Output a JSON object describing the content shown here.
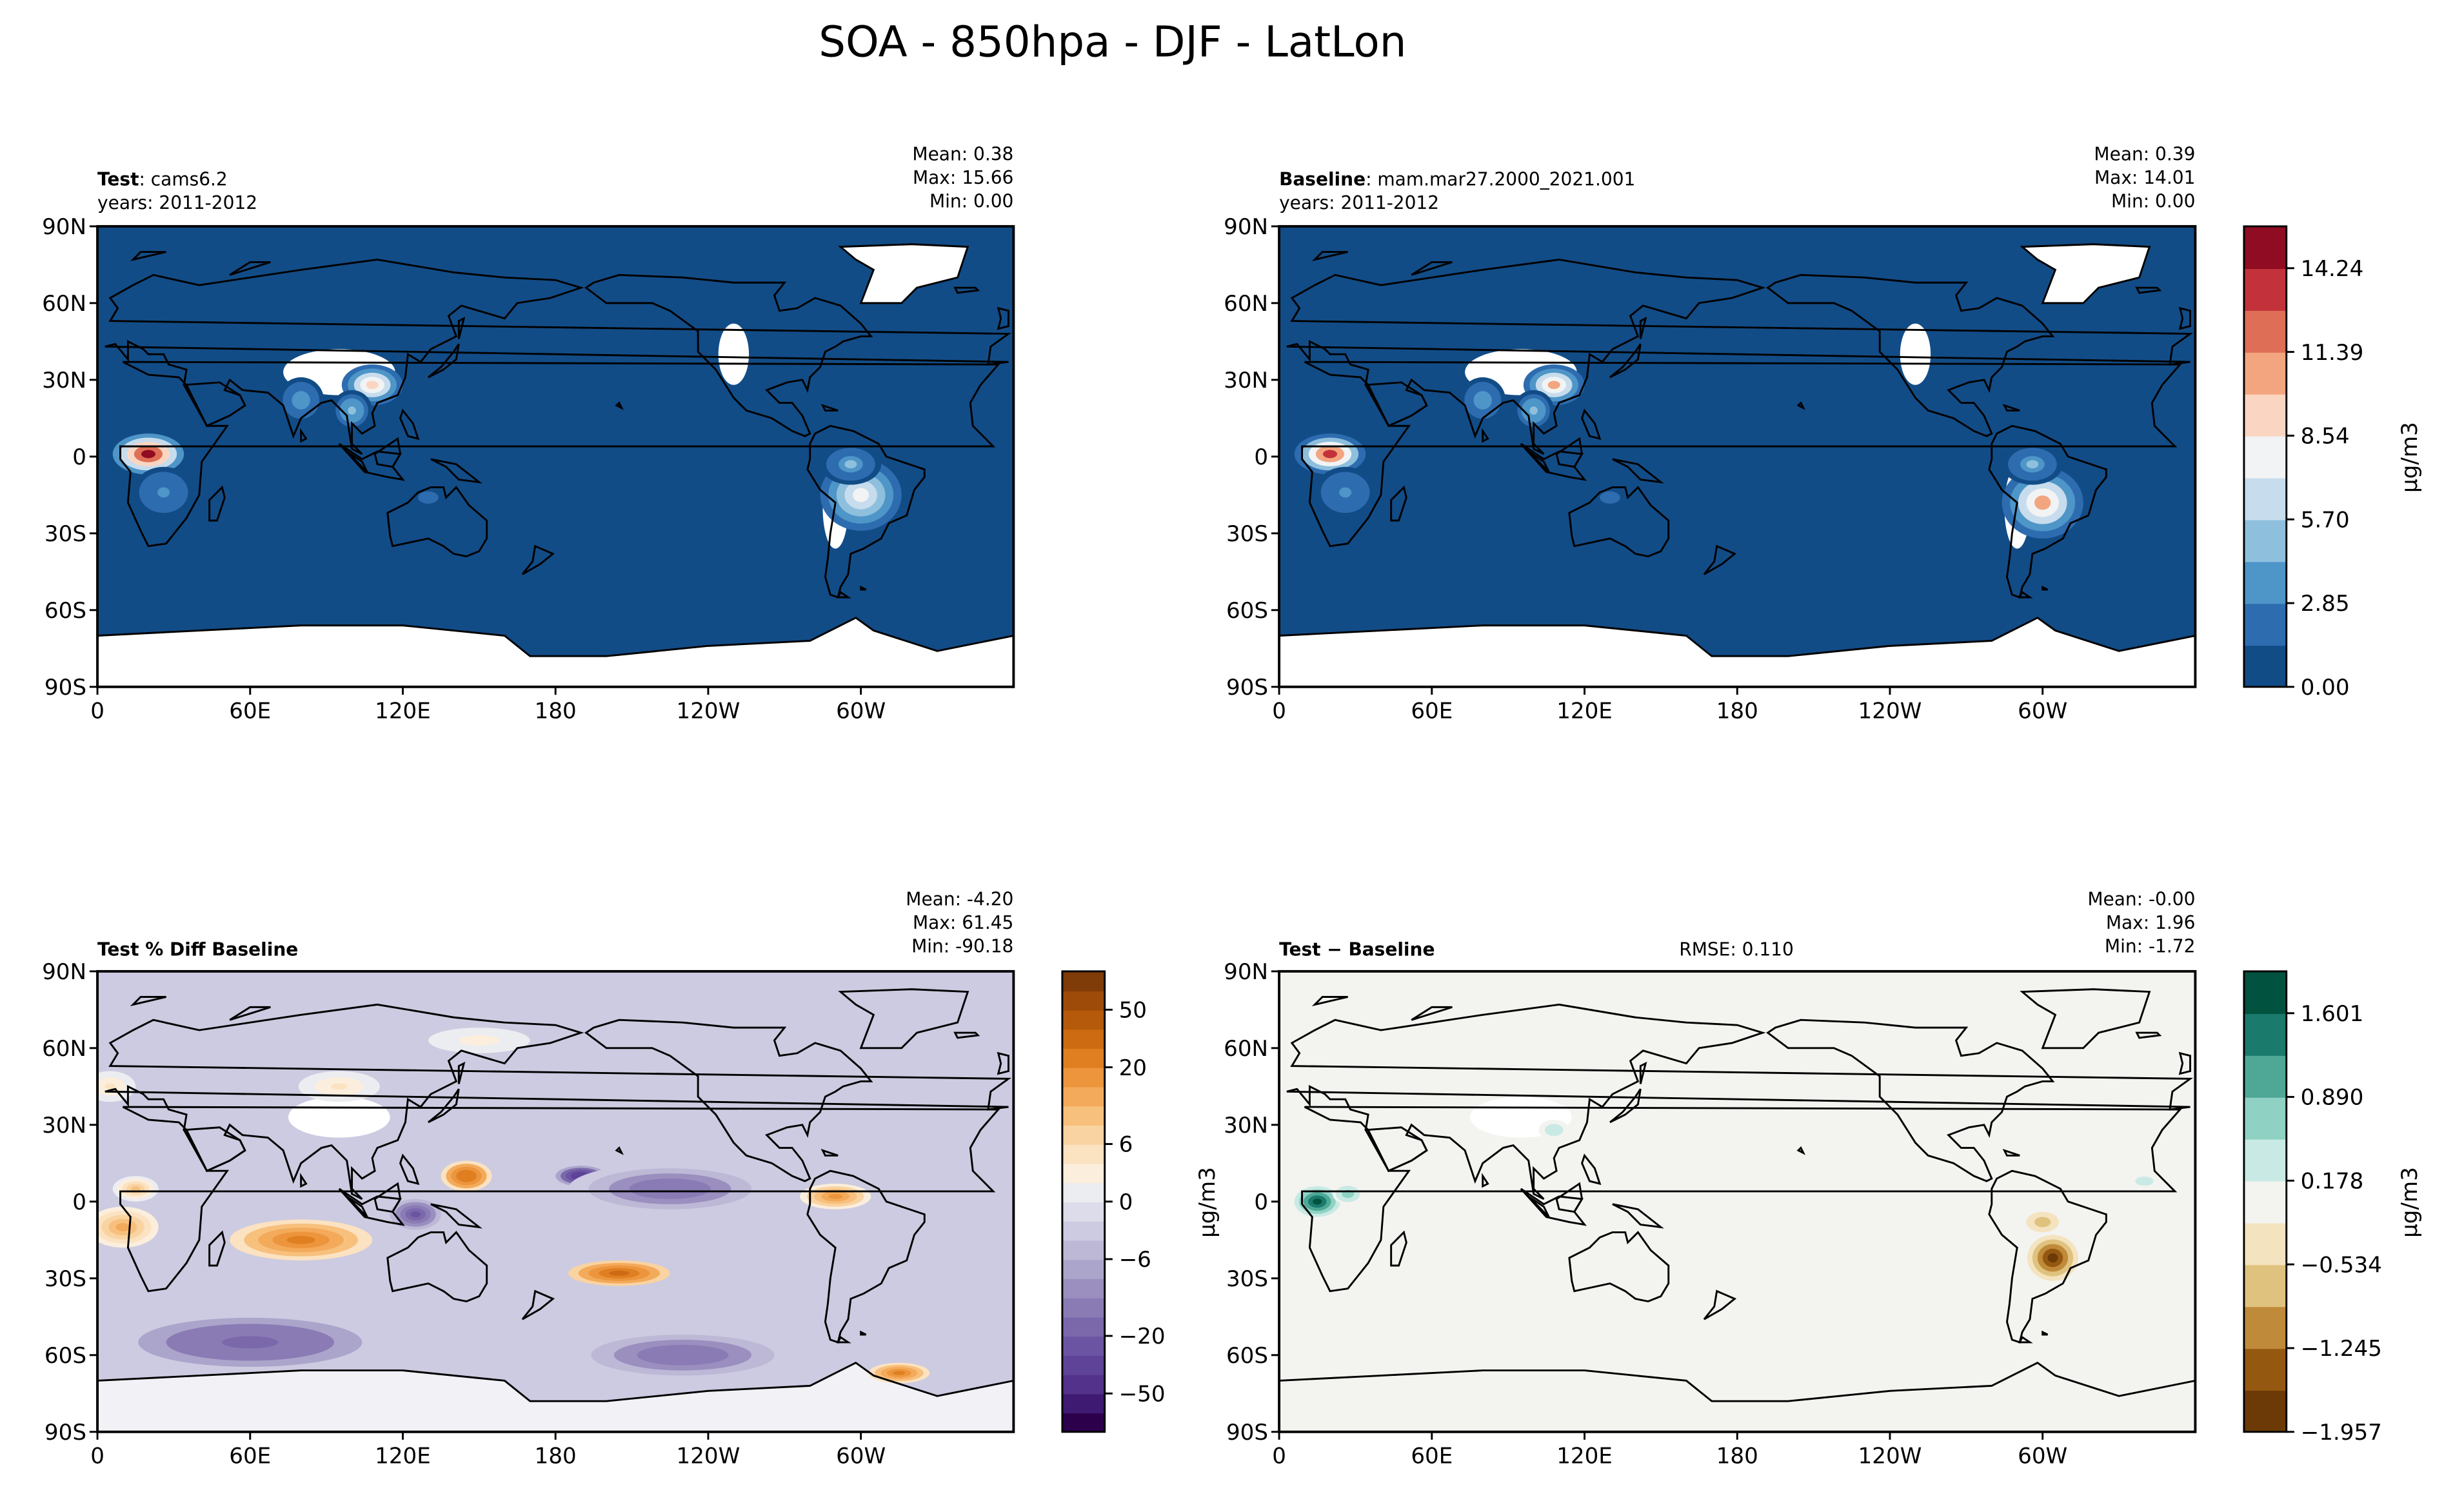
{
  "figure": {
    "title": "SOA - 850hpa - DJF - LatLon"
  },
  "chart_data": [
    {
      "type": "heatmap",
      "panel": "test",
      "title_bold": "Test",
      "title_rest": ": cams6.2",
      "years": "years: 2011-2012",
      "stats": {
        "mean": "Mean:  0.38",
        "max": "Max: 15.66",
        "min": "Min:  0.00"
      },
      "x_ticks": [
        "0",
        "60E",
        "120E",
        "180",
        "120W",
        "60W"
      ],
      "y_ticks": [
        "90N",
        "60N",
        "30N",
        "0",
        "30S",
        "60S",
        "90S"
      ],
      "xlim": [
        0,
        360
      ],
      "ylim": [
        -90,
        90
      ],
      "blobs": [
        {
          "name": "central-africa",
          "lon": 20,
          "lat": 1,
          "w": 14,
          "h": 8,
          "v": 15.0
        },
        {
          "name": "south-africa",
          "lon": 26,
          "lat": -14,
          "w": 12,
          "h": 10,
          "v": 3.5
        },
        {
          "name": "east-asia",
          "lon": 108,
          "lat": 28,
          "w": 12,
          "h": 8,
          "v": 9.5
        },
        {
          "name": "india",
          "lon": 80,
          "lat": 22,
          "w": 9,
          "h": 9,
          "v": 4.0
        },
        {
          "name": "se-asia",
          "lon": 100,
          "lat": 18,
          "w": 8,
          "h": 8,
          "v": 5.0
        },
        {
          "name": "south-america",
          "lon": 300,
          "lat": -15,
          "w": 16,
          "h": 14,
          "v": 8.5
        },
        {
          "name": "amazon",
          "lon": 296,
          "lat": -3,
          "w": 12,
          "h": 8,
          "v": 4.5
        },
        {
          "name": "north-australia",
          "lon": 130,
          "lat": -16,
          "w": 10,
          "h": 6,
          "v": 2.0
        }
      ]
    },
    {
      "type": "heatmap",
      "panel": "baseline",
      "title_bold": "Baseline",
      "title_rest": ": mam.mar27.2000_2021.001",
      "years": "years: 2011-2012",
      "stats": {
        "mean": "Mean:  0.39",
        "max": "Max: 14.01",
        "min": "Min:  0.00"
      },
      "x_ticks": [
        "0",
        "60E",
        "120E",
        "180",
        "120W",
        "60W"
      ],
      "y_ticks": [
        "90N",
        "60N",
        "30N",
        "0",
        "30S",
        "60S",
        "90S"
      ],
      "xlim": [
        0,
        360
      ],
      "ylim": [
        -90,
        90
      ],
      "blobs": [
        {
          "name": "central-africa",
          "lon": 20,
          "lat": 1,
          "w": 14,
          "h": 8,
          "v": 13.5
        },
        {
          "name": "south-africa",
          "lon": 26,
          "lat": -14,
          "w": 12,
          "h": 10,
          "v": 3.5
        },
        {
          "name": "east-asia",
          "lon": 108,
          "lat": 28,
          "w": 12,
          "h": 8,
          "v": 10.0
        },
        {
          "name": "india",
          "lon": 80,
          "lat": 22,
          "w": 9,
          "h": 9,
          "v": 4.0
        },
        {
          "name": "se-asia",
          "lon": 100,
          "lat": 18,
          "w": 8,
          "h": 8,
          "v": 5.0
        },
        {
          "name": "south-america",
          "lon": 300,
          "lat": -18,
          "w": 16,
          "h": 14,
          "v": 10.0
        },
        {
          "name": "amazon",
          "lon": 296,
          "lat": -3,
          "w": 12,
          "h": 8,
          "v": 4.5
        },
        {
          "name": "north-australia",
          "lon": 130,
          "lat": -16,
          "w": 10,
          "h": 6,
          "v": 2.0
        }
      ],
      "colorbar": {
        "label": "μg/m3",
        "ticks": [
          "0.00",
          "2.85",
          "5.70",
          "8.54",
          "11.39",
          "14.24"
        ],
        "colors": [
          "#124c87",
          "#2e6cb0",
          "#4e95c8",
          "#8ec0dd",
          "#c7dcec",
          "#f1f3f4",
          "#fad6c2",
          "#f3a57f",
          "#de6f56",
          "#c3323a",
          "#8f0c22"
        ]
      }
    },
    {
      "type": "heatmap",
      "panel": "pct-diff",
      "title_bold": "Test % Diff Baseline",
      "stats": {
        "mean": "Mean: -4.20",
        "max": "Max: 61.45",
        "min": "Min: -90.18"
      },
      "x_ticks": [
        "0",
        "60E",
        "120E",
        "180",
        "120W",
        "60W"
      ],
      "y_ticks": [
        "90N",
        "60N",
        "30N",
        "0",
        "30S",
        "60S",
        "90S"
      ],
      "xlim": [
        0,
        360
      ],
      "ylim": [
        -90,
        90
      ],
      "blobs": [
        {
          "name": "south-atlantic",
          "lon": 10,
          "lat": -10,
          "w": 14,
          "h": 8,
          "v": 12
        },
        {
          "name": "west-africa",
          "lon": 15,
          "lat": 5,
          "w": 9,
          "h": 5,
          "v": 8
        },
        {
          "name": "north-atlantic-east",
          "lon": 5,
          "lat": 45,
          "w": 10,
          "h": 6,
          "v": 4
        },
        {
          "name": "central-asia",
          "lon": 95,
          "lat": 45,
          "w": 16,
          "h": 6,
          "v": 4
        },
        {
          "name": "siberia",
          "lon": 150,
          "lat": 63,
          "w": 20,
          "h": 5,
          "v": 3
        },
        {
          "name": "indian-ocean",
          "lon": 80,
          "lat": -15,
          "w": 28,
          "h": 8,
          "v": 22
        },
        {
          "name": "west-pacific",
          "lon": 145,
          "lat": 10,
          "w": 10,
          "h": 6,
          "v": 25
        },
        {
          "name": "south-pacific",
          "lon": 205,
          "lat": -28,
          "w": 20,
          "h": 5,
          "v": 30
        },
        {
          "name": "east-pacific",
          "lon": 290,
          "lat": 2,
          "w": 14,
          "h": 5,
          "v": 15
        },
        {
          "name": "patagonia-sea",
          "lon": 315,
          "lat": -67,
          "w": 12,
          "h": 4,
          "v": 20
        },
        {
          "name": "north-pacific-min",
          "lon": 190,
          "lat": 10,
          "w": 10,
          "h": 4,
          "v": -40
        },
        {
          "name": "pacific-band",
          "lon": 225,
          "lat": 5,
          "w": 40,
          "h": 10,
          "v": -15
        },
        {
          "name": "southern-ocean",
          "lon": 60,
          "lat": -55,
          "w": 55,
          "h": 12,
          "v": -18
        },
        {
          "name": "southern-ocean-b",
          "lon": 230,
          "lat": -60,
          "w": 45,
          "h": 10,
          "v": -15
        },
        {
          "name": "maritime",
          "lon": 125,
          "lat": -5,
          "w": 10,
          "h": 6,
          "v": -25
        }
      ],
      "colorbar": {
        "ticks": [
          "−50",
          "−20",
          "−6",
          "0",
          "6",
          "20",
          "50"
        ],
        "tick_values": [
          -50,
          -20,
          -6,
          0,
          6,
          20,
          50
        ],
        "levels": [
          -70,
          -60,
          -50,
          -40,
          -30,
          -20,
          -15,
          -10,
          -8,
          -6,
          -4,
          -2,
          0,
          2,
          4,
          6,
          8,
          10,
          15,
          20,
          30,
          40,
          50,
          60,
          70
        ],
        "colors": [
          "#2d004b",
          "#3f1a72",
          "#52328b",
          "#5f4398",
          "#6b55a2",
          "#7a68ab",
          "#8a7bb5",
          "#9a8fbf",
          "#aca5cb",
          "#bcb8d6",
          "#cccbe1",
          "#dcdcea",
          "#ecedf1",
          "#fbeedc",
          "#fbe2c1",
          "#f9d3a1",
          "#f8c07d",
          "#f3aa5a",
          "#ec953c",
          "#df7f21",
          "#cc6b11",
          "#b5590a",
          "#9e4a08",
          "#7f3b08"
        ]
      }
    },
    {
      "type": "heatmap",
      "panel": "diff",
      "title_bold": "Test − Baseline",
      "rmse": "RMSE: 0.110",
      "stats": {
        "mean": "Mean: -0.00",
        "max": "Max:  1.96",
        "min": "Min: -1.72"
      },
      "x_ticks": [
        "0",
        "60E",
        "120E",
        "180",
        "120W",
        "60W"
      ],
      "y_ticks": [
        "90N",
        "60N",
        "30N",
        "0",
        "30S",
        "60S",
        "90S"
      ],
      "xlim": [
        0,
        360
      ],
      "ylim": [
        -90,
        90
      ],
      "blobs": [
        {
          "name": "central-africa",
          "lon": 15,
          "lat": 0,
          "w": 9,
          "h": 6,
          "v": 1.8
        },
        {
          "name": "central-africa-b",
          "lon": 27,
          "lat": 3,
          "w": 6,
          "h": 4,
          "v": 0.7
        },
        {
          "name": "east-asia",
          "lon": 108,
          "lat": 28,
          "w": 6,
          "h": 4,
          "v": 0.4
        },
        {
          "name": "south-america",
          "lon": 304,
          "lat": -22,
          "w": 10,
          "h": 9,
          "v": -1.7
        },
        {
          "name": "south-america-b",
          "lon": 300,
          "lat": -8,
          "w": 8,
          "h": 5,
          "v": -0.7
        },
        {
          "name": "atlantic",
          "lon": 340,
          "lat": 8,
          "w": 6,
          "h": 3,
          "v": 0.4
        }
      ],
      "colorbar": {
        "label": "μg/m3",
        "ticks": [
          "−1.957",
          "−1.245",
          "−0.534",
          "0.178",
          "0.890",
          "1.601"
        ],
        "tick_values": [
          -1.957,
          -1.245,
          -0.534,
          0.178,
          0.89,
          1.601
        ],
        "levels": [
          -1.957,
          -1.601,
          -1.245,
          -0.89,
          -0.534,
          -0.178,
          0.178,
          0.534,
          0.89,
          1.245,
          1.601,
          1.957
        ],
        "colors": [
          "#6b3a06",
          "#955810",
          "#bf8a3a",
          "#dfc27d",
          "#f4e3bf",
          "#f3f3f0",
          "#c9eae4",
          "#8fd2c4",
          "#4fa796",
          "#1a7a6b",
          "#01523f"
        ]
      },
      "left_unit_label": "μg/m3"
    }
  ]
}
